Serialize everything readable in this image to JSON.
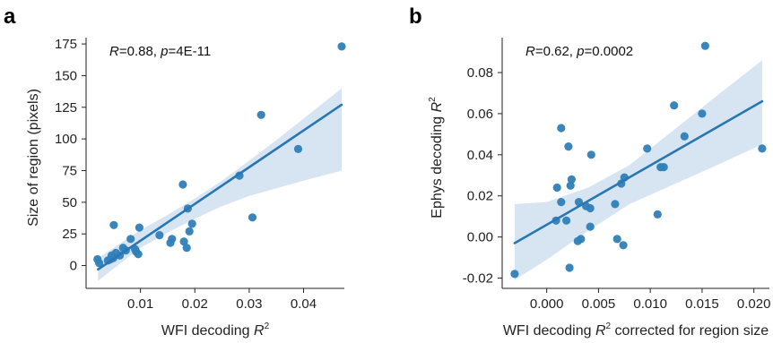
{
  "colors": {
    "marker": "#2f7fb8",
    "line": "#2876b3",
    "band": "#cfe0ef"
  },
  "chart_data": [
    {
      "panel": "a",
      "type": "scatter",
      "annotation": {
        "r": "R",
        "r_val": "=0.88, ",
        "p": "p",
        "p_val": "=4E-11"
      },
      "xlabel": {
        "text": "WFI decoding ",
        "var": "R",
        "sup": "2"
      },
      "ylabel": {
        "text": "Size of region (pixels)"
      },
      "xlim": [
        0.0,
        0.0475
      ],
      "ylim": [
        -18,
        180
      ],
      "xticks": [
        0.01,
        0.02,
        0.03,
        0.04
      ],
      "xtick_labels": [
        "0.01",
        "0.02",
        "0.03",
        "0.04"
      ],
      "yticks": [
        0,
        25,
        50,
        75,
        100,
        125,
        150,
        175
      ],
      "ytick_labels": [
        "0",
        "25",
        "50",
        "75",
        "100",
        "125",
        "150",
        "175"
      ],
      "points": [
        [
          0.047,
          173
        ],
        [
          0.0322,
          119
        ],
        [
          0.039,
          92
        ],
        [
          0.0282,
          71
        ],
        [
          0.0306,
          38
        ],
        [
          0.0178,
          64
        ],
        [
          0.0187,
          45
        ],
        [
          0.0195,
          33
        ],
        [
          0.019,
          27
        ],
        [
          0.018,
          19
        ],
        [
          0.0185,
          14
        ],
        [
          0.0155,
          18
        ],
        [
          0.0158,
          21
        ],
        [
          0.0135,
          24
        ],
        [
          0.0098,
          30
        ],
        [
          0.0051,
          32
        ],
        [
          0.0082,
          21
        ],
        [
          0.009,
          13
        ],
        [
          0.0092,
          11
        ],
        [
          0.0096,
          9
        ],
        [
          0.0068,
          14
        ],
        [
          0.0073,
          12
        ],
        [
          0.0062,
          8
        ],
        [
          0.0055,
          10
        ],
        [
          0.0047,
          8
        ],
        [
          0.0045,
          5
        ],
        [
          0.0021,
          5
        ],
        [
          0.0024,
          2
        ],
        [
          0.004,
          4
        ],
        [
          0.005,
          6
        ]
      ],
      "fit": {
        "x": [
          0.0022,
          0.047
        ],
        "y": [
          -3,
          127
        ]
      },
      "ci_band": {
        "x": [
          0.0022,
          0.01,
          0.015,
          0.02,
          0.025,
          0.03,
          0.035,
          0.04,
          0.047
        ],
        "lower": [
          -12,
          14,
          26,
          37,
          47,
          55,
          61,
          67,
          75
        ],
        "upper": [
          6,
          28,
          40,
          53,
          67,
          83,
          99,
          116,
          140
        ]
      }
    },
    {
      "panel": "b",
      "type": "scatter",
      "annotation": {
        "r": "R",
        "r_val": "=0.62, ",
        "p": "p",
        "p_val": "=0.0002"
      },
      "xlabel": {
        "text": "WFI decoding ",
        "var": "R",
        "sup": "2",
        "suffix": " corrected for region size"
      },
      "ylabel": {
        "text": "Ephys decoding ",
        "var": "R",
        "sup": "2"
      },
      "xlim": [
        -0.0043,
        0.0215
      ],
      "ylim": [
        -0.025,
        0.097
      ],
      "xticks": [
        0.0,
        0.005,
        0.01,
        0.015,
        0.02
      ],
      "xtick_labels": [
        "0.000",
        "0.005",
        "0.010",
        "0.015",
        "0.020"
      ],
      "yticks": [
        -0.02,
        0.0,
        0.02,
        0.04,
        0.06,
        0.08
      ],
      "ytick_labels": [
        "-0.02",
        "0.00",
        "0.02",
        "0.04",
        "0.06",
        "0.08"
      ],
      "points": [
        [
          0.0153,
          0.093
        ],
        [
          0.0123,
          0.064
        ],
        [
          0.015,
          0.06
        ],
        [
          0.0208,
          0.043
        ],
        [
          0.0133,
          0.049
        ],
        [
          0.0097,
          0.043
        ],
        [
          0.0113,
          0.034
        ],
        [
          0.011,
          0.034
        ],
        [
          0.0075,
          0.029
        ],
        [
          0.0072,
          0.026
        ],
        [
          0.0066,
          0.016
        ],
        [
          0.0107,
          0.011
        ],
        [
          0.0014,
          0.053
        ],
        [
          0.0021,
          0.044
        ],
        [
          0.0043,
          0.04
        ],
        [
          0.001,
          0.024
        ],
        [
          0.0024,
          0.028
        ],
        [
          0.0023,
          0.025
        ],
        [
          0.0038,
          0.015
        ],
        [
          0.0042,
          0.014
        ],
        [
          0.0031,
          0.017
        ],
        [
          0.0014,
          0.017
        ],
        [
          0.0019,
          0.008
        ],
        [
          0.0009,
          0.008
        ],
        [
          0.0042,
          0.005
        ],
        [
          0.0033,
          -0.001
        ],
        [
          0.003,
          -0.002
        ],
        [
          0.0068,
          -0.001
        ],
        [
          0.0074,
          -0.004
        ],
        [
          0.0022,
          -0.015
        ],
        [
          -0.0031,
          -0.018
        ]
      ],
      "fit": {
        "x": [
          -0.0031,
          0.0208
        ],
        "y": [
          -0.003,
          0.066
        ]
      },
      "ci_band": {
        "x": [
          -0.0031,
          0.0,
          0.004,
          0.008,
          0.012,
          0.016,
          0.0208
        ],
        "lower": [
          -0.021,
          -0.011,
          0.003,
          0.016,
          0.025,
          0.034,
          0.045
        ],
        "upper": [
          0.016,
          0.017,
          0.024,
          0.035,
          0.051,
          0.067,
          0.086
        ]
      }
    }
  ]
}
